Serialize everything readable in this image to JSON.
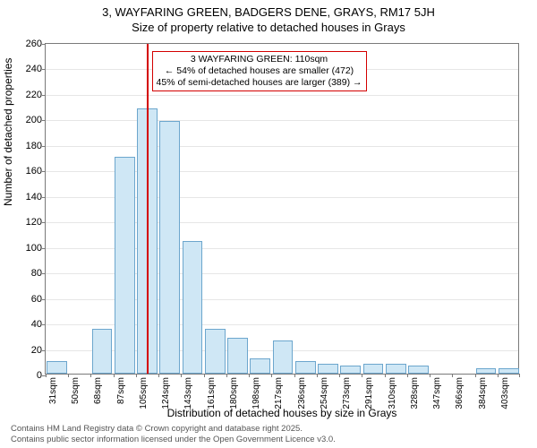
{
  "title_line1": "3, WAYFARING GREEN, BADGERS DENE, GRAYS, RM17 5JH",
  "title_line2": "Size of property relative to detached houses in Grays",
  "y_axis_label": "Number of detached properties",
  "x_axis_label": "Distribution of detached houses by size in Grays",
  "footer_line1": "Contains HM Land Registry data © Crown copyright and database right 2025.",
  "footer_line2": "Contains public sector information licensed under the Open Government Licence v3.0.",
  "chart": {
    "type": "histogram",
    "background_color": "#ffffff",
    "grid_color": "#e6e6e6",
    "axis_color": "#7a7a7a",
    "bar_fill": "#cfe7f5",
    "bar_border": "#6ca6cd",
    "refline_color": "#d40000",
    "title_fontsize": 13,
    "label_fontsize": 12,
    "tick_fontsize": 11,
    "xtick_fontsize": 10,
    "ylim": [
      0,
      260
    ],
    "ytick_step": 20,
    "yticks": [
      0,
      20,
      40,
      60,
      80,
      100,
      120,
      140,
      160,
      180,
      200,
      220,
      240,
      260
    ],
    "xticks": [
      "31sqm",
      "50sqm",
      "68sqm",
      "87sqm",
      "105sqm",
      "124sqm",
      "143sqm",
      "161sqm",
      "180sqm",
      "198sqm",
      "217sqm",
      "236sqm",
      "254sqm",
      "273sqm",
      "291sqm",
      "310sqm",
      "328sqm",
      "347sqm",
      "366sqm",
      "384sqm",
      "403sqm"
    ],
    "bars": [
      10,
      0,
      35,
      170,
      208,
      198,
      104,
      35,
      28,
      12,
      26,
      10,
      8,
      6,
      8,
      8,
      6,
      0,
      0,
      4,
      4
    ],
    "refline_value_sqm": 110,
    "annotation": {
      "line1": "3 WAYFARING GREEN: 110sqm",
      "line2": "← 54% of detached houses are smaller (472)",
      "line3": "45% of semi-detached houses are larger (389) →"
    }
  }
}
